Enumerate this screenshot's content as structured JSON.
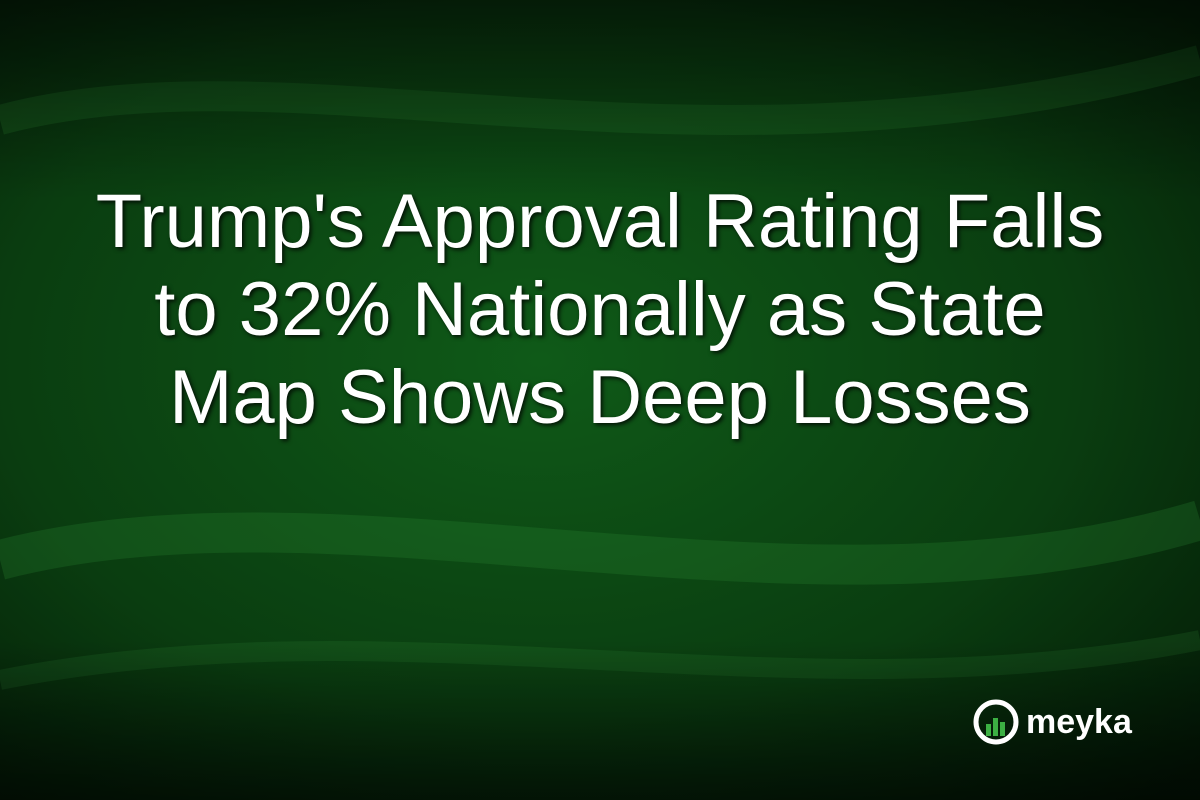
{
  "headline": {
    "lines": [
      "Trump's Approval Rating Falls",
      "to 32% Nationally as State",
      "Map Shows Deep Losses"
    ]
  },
  "brand": {
    "name": "meyka"
  }
}
